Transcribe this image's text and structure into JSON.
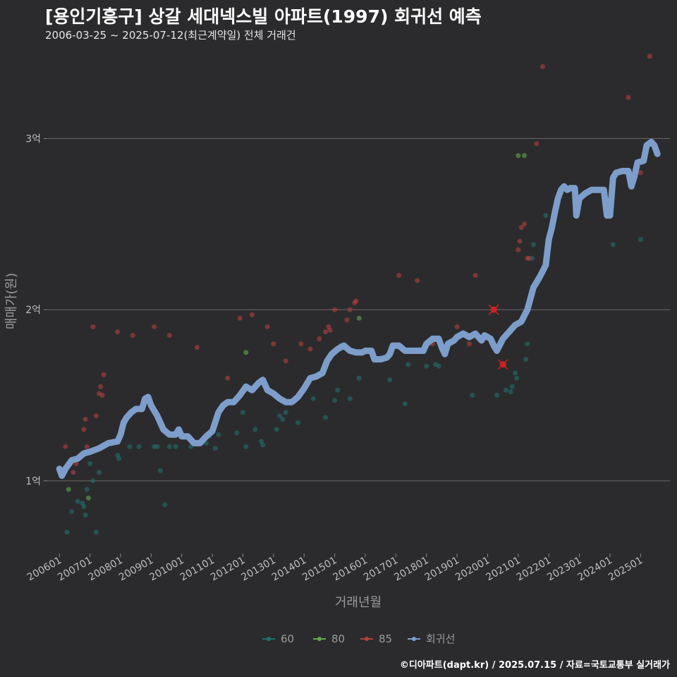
{
  "title": "[용인기흥구] 상갈 세대넥스빌 아파트(1997) 회귀선 예측",
  "subtitle": "2006-03-25 ~ 2025-07-12(최근계약일) 전체 거래건",
  "credit": "©디아파트(dapt.kr) / 2025.07.15 / 자료=국토교통부 실거래가",
  "chart_data": {
    "type": "scatter",
    "xlabel": "거래년월",
    "ylabel": "매매가(원)",
    "x_ticks": [
      "200601",
      "200701",
      "200801",
      "200901",
      "201001",
      "201101",
      "201201",
      "201301",
      "201401",
      "201501",
      "201601",
      "201701",
      "201801",
      "201901",
      "202001",
      "202101",
      "202201",
      "202301",
      "202401",
      "202501"
    ],
    "y_ticks": [
      {
        "value": 1.0,
        "label": "1억"
      },
      {
        "value": 2.0,
        "label": "2억"
      },
      {
        "value": 3.0,
        "label": "3억"
      }
    ],
    "xlim": [
      2005.58,
      2025.96
    ],
    "ylim": [
      0.575,
      3.5
    ],
    "grid": true,
    "legend_position": "bottom",
    "series": [
      {
        "name": "60",
        "color": "#1f6f6a",
        "points": [
          [
            2006.25,
            0.7
          ],
          [
            2006.4,
            0.82
          ],
          [
            2006.6,
            0.88
          ],
          [
            2006.75,
            0.87
          ],
          [
            2006.8,
            0.85
          ],
          [
            2006.85,
            0.8
          ],
          [
            2006.9,
            0.95
          ],
          [
            2007.0,
            1.1
          ],
          [
            2007.1,
            1.0
          ],
          [
            2007.2,
            0.7
          ],
          [
            2007.3,
            1.05
          ],
          [
            2007.9,
            1.15
          ],
          [
            2007.95,
            1.13
          ],
          [
            2008.3,
            1.2
          ],
          [
            2008.6,
            1.2
          ],
          [
            2009.1,
            1.2
          ],
          [
            2009.2,
            1.2
          ],
          [
            2009.3,
            1.06
          ],
          [
            2009.45,
            0.86
          ],
          [
            2009.6,
            1.2
          ],
          [
            2009.8,
            1.2
          ],
          [
            2010.3,
            1.2
          ],
          [
            2010.8,
            1.22
          ],
          [
            2010.9,
            1.26
          ],
          [
            2011.1,
            1.19
          ],
          [
            2011.2,
            1.27
          ],
          [
            2011.8,
            1.28
          ],
          [
            2012.0,
            1.4
          ],
          [
            2012.1,
            1.2
          ],
          [
            2012.4,
            1.3
          ],
          [
            2012.6,
            1.23
          ],
          [
            2012.65,
            1.21
          ],
          [
            2013.1,
            1.3
          ],
          [
            2013.2,
            1.38
          ],
          [
            2013.3,
            1.36
          ],
          [
            2013.4,
            1.4
          ],
          [
            2013.8,
            1.34
          ],
          [
            2014.3,
            1.48
          ],
          [
            2014.7,
            1.37
          ],
          [
            2015.0,
            1.47
          ],
          [
            2015.1,
            1.53
          ],
          [
            2015.5,
            1.48
          ],
          [
            2015.8,
            1.6
          ],
          [
            2016.8,
            1.59
          ],
          [
            2017.3,
            1.45
          ],
          [
            2017.4,
            1.68
          ],
          [
            2018.0,
            1.67
          ],
          [
            2018.3,
            1.68
          ],
          [
            2018.4,
            1.67
          ],
          [
            2019.5,
            1.5
          ],
          [
            2020.3,
            1.5
          ],
          [
            2020.6,
            1.53
          ],
          [
            2020.75,
            1.52
          ],
          [
            2020.8,
            1.55
          ],
          [
            2020.9,
            1.63
          ],
          [
            2020.95,
            1.6
          ],
          [
            2021.25,
            1.71
          ],
          [
            2021.3,
            1.8
          ],
          [
            2021.45,
            2.3
          ],
          [
            2021.5,
            2.38
          ],
          [
            2021.9,
            2.55
          ],
          [
            2024.1,
            2.38
          ],
          [
            2025.0,
            2.41
          ]
        ]
      },
      {
        "name": "80",
        "color": "#5ea84e",
        "points": [
          [
            2006.3,
            0.95
          ],
          [
            2006.95,
            0.9
          ],
          [
            2012.1,
            1.75
          ],
          [
            2012.75,
            1.55
          ],
          [
            2015.2,
            1.79
          ],
          [
            2015.8,
            1.95
          ],
          [
            2021.0,
            2.9
          ],
          [
            2021.2,
            2.9
          ]
        ]
      },
      {
        "name": "85",
        "color": "#b3403f",
        "points": [
          [
            2006.2,
            1.2
          ],
          [
            2006.45,
            1.05
          ],
          [
            2006.55,
            1.1
          ],
          [
            2006.8,
            1.3
          ],
          [
            2006.85,
            1.36
          ],
          [
            2006.9,
            1.2
          ],
          [
            2007.1,
            1.9
          ],
          [
            2007.2,
            1.38
          ],
          [
            2007.3,
            1.51
          ],
          [
            2007.35,
            1.55
          ],
          [
            2007.4,
            1.5
          ],
          [
            2007.45,
            1.62
          ],
          [
            2007.9,
            1.87
          ],
          [
            2008.4,
            1.85
          ],
          [
            2009.1,
            1.9
          ],
          [
            2009.6,
            1.85
          ],
          [
            2010.5,
            1.78
          ],
          [
            2011.5,
            1.6
          ],
          [
            2011.9,
            1.95
          ],
          [
            2012.3,
            1.97
          ],
          [
            2012.8,
            1.9
          ],
          [
            2013.0,
            1.8
          ],
          [
            2013.4,
            1.7
          ],
          [
            2013.9,
            1.8
          ],
          [
            2014.2,
            1.77
          ],
          [
            2014.5,
            1.83
          ],
          [
            2014.7,
            1.87
          ],
          [
            2014.8,
            1.9
          ],
          [
            2014.85,
            1.88
          ],
          [
            2015.0,
            2.0
          ],
          [
            2015.4,
            1.94
          ],
          [
            2015.5,
            2.0
          ],
          [
            2015.65,
            2.04
          ],
          [
            2015.7,
            2.05
          ],
          [
            2017.1,
            2.2
          ],
          [
            2017.7,
            2.17
          ],
          [
            2018.2,
            1.8
          ],
          [
            2019.0,
            1.9
          ],
          [
            2019.4,
            1.8
          ],
          [
            2019.6,
            2.2
          ],
          [
            2020.2,
            2.0
          ],
          [
            2020.75,
            1.87
          ],
          [
            2021.0,
            2.35
          ],
          [
            2021.05,
            2.4
          ],
          [
            2021.1,
            2.48
          ],
          [
            2021.2,
            2.5
          ],
          [
            2021.3,
            2.3
          ],
          [
            2021.35,
            2.3
          ],
          [
            2021.6,
            2.97
          ],
          [
            2021.8,
            3.42
          ],
          [
            2024.6,
            3.24
          ],
          [
            2025.0,
            2.8
          ],
          [
            2025.3,
            3.48
          ]
        ]
      },
      {
        "name": "회귀선",
        "color": "#7d9ecb",
        "points": [
          [
            2006.0,
            1.07
          ],
          [
            2006.08,
            1.03
          ],
          [
            2006.2,
            1.07
          ],
          [
            2006.4,
            1.12
          ],
          [
            2006.6,
            1.13
          ],
          [
            2006.8,
            1.16
          ],
          [
            2007.0,
            1.17
          ],
          [
            2007.3,
            1.19
          ],
          [
            2007.6,
            1.22
          ],
          [
            2007.9,
            1.23
          ],
          [
            2008.0,
            1.27
          ],
          [
            2008.1,
            1.34
          ],
          [
            2008.2,
            1.37
          ],
          [
            2008.35,
            1.4
          ],
          [
            2008.5,
            1.42
          ],
          [
            2008.7,
            1.42
          ],
          [
            2008.8,
            1.48
          ],
          [
            2008.9,
            1.49
          ],
          [
            2009.0,
            1.44
          ],
          [
            2009.2,
            1.38
          ],
          [
            2009.4,
            1.3
          ],
          [
            2009.6,
            1.27
          ],
          [
            2009.8,
            1.27
          ],
          [
            2009.9,
            1.3
          ],
          [
            2010.0,
            1.26
          ],
          [
            2010.2,
            1.26
          ],
          [
            2010.4,
            1.22
          ],
          [
            2010.6,
            1.22
          ],
          [
            2010.8,
            1.26
          ],
          [
            2011.0,
            1.29
          ],
          [
            2011.2,
            1.4
          ],
          [
            2011.35,
            1.44
          ],
          [
            2011.5,
            1.46
          ],
          [
            2011.7,
            1.46
          ],
          [
            2011.9,
            1.5
          ],
          [
            2012.1,
            1.55
          ],
          [
            2012.3,
            1.53
          ],
          [
            2012.5,
            1.57
          ],
          [
            2012.65,
            1.59
          ],
          [
            2012.8,
            1.53
          ],
          [
            2013.0,
            1.51
          ],
          [
            2013.2,
            1.48
          ],
          [
            2013.4,
            1.46
          ],
          [
            2013.6,
            1.46
          ],
          [
            2013.8,
            1.49
          ],
          [
            2014.0,
            1.54
          ],
          [
            2014.2,
            1.6
          ],
          [
            2014.4,
            1.61
          ],
          [
            2014.6,
            1.63
          ],
          [
            2014.75,
            1.7
          ],
          [
            2014.9,
            1.74
          ],
          [
            2015.1,
            1.77
          ],
          [
            2015.3,
            1.79
          ],
          [
            2015.5,
            1.76
          ],
          [
            2015.7,
            1.75
          ],
          [
            2015.9,
            1.75
          ],
          [
            2016.0,
            1.76
          ],
          [
            2016.2,
            1.76
          ],
          [
            2016.3,
            1.71
          ],
          [
            2016.5,
            1.71
          ],
          [
            2016.7,
            1.72
          ],
          [
            2016.8,
            1.74
          ],
          [
            2016.9,
            1.79
          ],
          [
            2017.1,
            1.79
          ],
          [
            2017.3,
            1.76
          ],
          [
            2017.5,
            1.76
          ],
          [
            2017.7,
            1.76
          ],
          [
            2017.9,
            1.76
          ],
          [
            2018.0,
            1.8
          ],
          [
            2018.2,
            1.83
          ],
          [
            2018.4,
            1.83
          ],
          [
            2018.5,
            1.78
          ],
          [
            2018.6,
            1.74
          ],
          [
            2018.7,
            1.8
          ],
          [
            2018.9,
            1.82
          ],
          [
            2019.0,
            1.84
          ],
          [
            2019.2,
            1.86
          ],
          [
            2019.4,
            1.84
          ],
          [
            2019.6,
            1.86
          ],
          [
            2019.8,
            1.82
          ],
          [
            2019.9,
            1.85
          ],
          [
            2020.1,
            1.83
          ],
          [
            2020.2,
            1.79
          ],
          [
            2020.3,
            1.76
          ],
          [
            2020.5,
            1.83
          ],
          [
            2020.7,
            1.87
          ],
          [
            2020.9,
            1.91
          ],
          [
            2021.1,
            1.93
          ],
          [
            2021.3,
            2.0
          ],
          [
            2021.5,
            2.13
          ],
          [
            2021.7,
            2.19
          ],
          [
            2021.9,
            2.26
          ],
          [
            2022.0,
            2.41
          ],
          [
            2022.1,
            2.48
          ],
          [
            2022.2,
            2.57
          ],
          [
            2022.3,
            2.65
          ],
          [
            2022.4,
            2.7
          ],
          [
            2022.5,
            2.72
          ],
          [
            2022.6,
            2.7
          ],
          [
            2022.7,
            2.71
          ],
          [
            2022.85,
            2.71
          ],
          [
            2022.9,
            2.55
          ],
          [
            2023.0,
            2.65
          ],
          [
            2023.2,
            2.68
          ],
          [
            2023.4,
            2.7
          ],
          [
            2023.6,
            2.7
          ],
          [
            2023.8,
            2.7
          ],
          [
            2023.9,
            2.55
          ],
          [
            2024.0,
            2.55
          ],
          [
            2024.1,
            2.77
          ],
          [
            2024.2,
            2.8
          ],
          [
            2024.4,
            2.81
          ],
          [
            2024.6,
            2.81
          ],
          [
            2024.7,
            2.72
          ],
          [
            2024.8,
            2.78
          ],
          [
            2024.9,
            2.86
          ],
          [
            2025.1,
            2.87
          ],
          [
            2025.2,
            2.96
          ],
          [
            2025.35,
            2.98
          ],
          [
            2025.45,
            2.96
          ],
          [
            2025.55,
            2.91
          ]
        ]
      }
    ],
    "highlighted_points": [
      [
        2020.2,
        2.0
      ],
      [
        2020.5,
        1.68
      ]
    ]
  }
}
